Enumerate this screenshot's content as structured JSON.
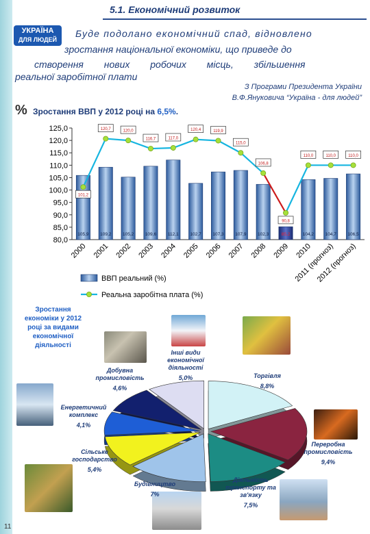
{
  "header": {
    "title": "5.1. Економічний розвиток"
  },
  "logo": {
    "line1": "УКРАЇНА",
    "line2": "ДЛЯ ЛЮДЕЙ"
  },
  "slogan": {
    "line1": "Буде подолано економічний спад, відновлено",
    "line2": "зростання національної економіки, що приведе до",
    "line3": "створення нових робочих місць, збільшення",
    "line4": "реальної заробітної плати"
  },
  "quote_source": {
    "line1": "З Програми Президента України",
    "line2": "В.Ф.Януковича “Україна - для людей”"
  },
  "gdp_heading": {
    "prefix": "Зростання ВВП у 2012 році на ",
    "value": "6,5%",
    "suffix": "."
  },
  "colors": {
    "accent": "#1e3c78",
    "bars": "#4a78b8",
    "bar_crisis": "#2a3f8f",
    "wage_line": "#16b5e0",
    "wage_marker": "#a6e03a",
    "crisis_line": "#cc1b1b"
  },
  "chart_data": [
    {
      "type": "bar",
      "categories": [
        "2000",
        "2001",
        "2002",
        "2003",
        "2004",
        "2005",
        "2006",
        "2007",
        "2008",
        "2009",
        "2010",
        "2011 (прогноз)",
        "2012 (прогноз)"
      ],
      "ylim": [
        80,
        125
      ],
      "yticks": [
        "80,0",
        "85,0",
        "90,0",
        "95,0",
        "100,0",
        "105,0",
        "110,0",
        "115,0",
        "120,0",
        "125,0"
      ],
      "grid": false,
      "legend": "bottom",
      "series": [
        {
          "name": "ВВП реальний (%)",
          "kind": "bar",
          "values": [
            105.9,
            109.2,
            105.2,
            109.6,
            112.1,
            102.7,
            107.3,
            107.9,
            102.3,
            85.2,
            104.2,
            104.7,
            106.5
          ],
          "labels": [
            "105,9",
            "109,2",
            "105,2",
            "109,6",
            "112,1",
            "102,7",
            "107,3",
            "107,9",
            "102,3",
            "85,2",
            "104,2",
            "104,7",
            "106,5"
          ]
        },
        {
          "name": "Реальна заробітна плата (%)",
          "kind": "line",
          "values": [
            101.2,
            120.7,
            120.0,
            116.7,
            117.0,
            120.4,
            119.9,
            115.0,
            106.8,
            90.8,
            110.0,
            110.0,
            110.0
          ],
          "labels": [
            "101,2",
            "120,7",
            "120,0",
            "116,7",
            "117,0",
            "120,4",
            "119,9",
            "115,0",
            "106,8",
            "90,8",
            "110,0",
            "110,0",
            "110,0"
          ]
        }
      ]
    },
    {
      "type": "pie",
      "title": "Зростання економіки у 2012 році за видами економічної діяльності",
      "slices": [
        {
          "label": "Торгівля",
          "value": 8.8,
          "text": "8,8%",
          "color": "#d2f2f6"
        },
        {
          "label": "Переробна промисловість",
          "value": 9.4,
          "text": "9,4%",
          "color": "#8a2440"
        },
        {
          "label": "Діяльність транспорту та зв'язку",
          "value": 7.5,
          "text": "7,5%",
          "color": "#1c8c84"
        },
        {
          "label": "Будівництво",
          "value": 7.0,
          "text": "7%",
          "color": "#9fc4ea"
        },
        {
          "label": "Сільське господарство",
          "value": 5.4,
          "text": "5,4%",
          "color": "#f2f21e"
        },
        {
          "label": "Енергетичний комплекс",
          "value": 4.1,
          "text": "4,1%",
          "color": "#1e5ed6"
        },
        {
          "label": "Добувна промисловість",
          "value": 4.6,
          "text": "4,6%",
          "color": "#12206e"
        },
        {
          "label": "Інші види економічної діяльності",
          "value": 5.0,
          "text": "5,0%",
          "color": "#ddddf2"
        }
      ]
    }
  ],
  "page_number": "11"
}
